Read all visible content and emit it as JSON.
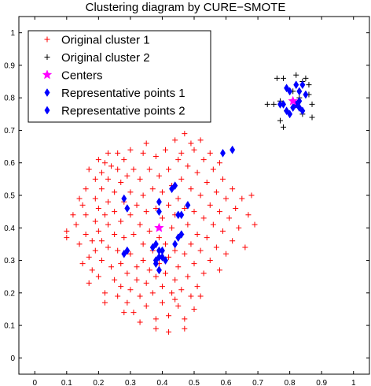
{
  "chart_data": {
    "type": "scatter",
    "title": "Clustering diagram by CURE−SMOTE",
    "xlabel": "",
    "ylabel": "",
    "xlim": [
      -0.05,
      1.05
    ],
    "ylim": [
      -0.05,
      1.05
    ],
    "x_ticks": [
      "0",
      "0.1",
      "0.2",
      "0.3",
      "0.4",
      "0.5",
      "0.6",
      "0.7",
      "0.8",
      "0.9",
      "1"
    ],
    "x_tick_values": [
      0,
      0.1,
      0.2,
      0.3,
      0.4,
      0.5,
      0.6,
      0.7,
      0.8,
      0.9,
      1
    ],
    "y_ticks": [
      "0",
      "0.1",
      "0.2",
      "0.3",
      "0.4",
      "0.5",
      "0.6",
      "0.7",
      "0.8",
      "0.9",
      "1"
    ],
    "y_tick_values": [
      0,
      0.1,
      0.2,
      0.3,
      0.4,
      0.5,
      0.6,
      0.7,
      0.8,
      0.9,
      1
    ],
    "grid": false,
    "legend_position": "top-left",
    "series": [
      {
        "name": "Original cluster 1",
        "marker": "plus",
        "color": "#ff0000",
        "points": [
          [
            0.1,
            0.39
          ],
          [
            0.1,
            0.37
          ],
          [
            0.13,
            0.41
          ],
          [
            0.14,
            0.35
          ],
          [
            0.15,
            0.29
          ],
          [
            0.15,
            0.47
          ],
          [
            0.16,
            0.38
          ],
          [
            0.16,
            0.44
          ],
          [
            0.16,
            0.52
          ],
          [
            0.17,
            0.58
          ],
          [
            0.17,
            0.31
          ],
          [
            0.17,
            0.23
          ],
          [
            0.18,
            0.36
          ],
          [
            0.18,
            0.27
          ],
          [
            0.19,
            0.55
          ],
          [
            0.19,
            0.49
          ],
          [
            0.19,
            0.42
          ],
          [
            0.19,
            0.33
          ],
          [
            0.2,
            0.61
          ],
          [
            0.2,
            0.46
          ],
          [
            0.2,
            0.39
          ],
          [
            0.2,
            0.25
          ],
          [
            0.21,
            0.57
          ],
          [
            0.21,
            0.52
          ],
          [
            0.21,
            0.36
          ],
          [
            0.21,
            0.3
          ],
          [
            0.22,
            0.6
          ],
          [
            0.22,
            0.44
          ],
          [
            0.22,
            0.2
          ],
          [
            0.22,
            0.17
          ],
          [
            0.23,
            0.63
          ],
          [
            0.23,
            0.55
          ],
          [
            0.23,
            0.48
          ],
          [
            0.23,
            0.41
          ],
          [
            0.23,
            0.34
          ],
          [
            0.24,
            0.59
          ],
          [
            0.24,
            0.28
          ],
          [
            0.25,
            0.51
          ],
          [
            0.25,
            0.45
          ],
          [
            0.25,
            0.38
          ],
          [
            0.25,
            0.24
          ],
          [
            0.26,
            0.58
          ],
          [
            0.26,
            0.33
          ],
          [
            0.26,
            0.19
          ],
          [
            0.27,
            0.54
          ],
          [
            0.27,
            0.42
          ],
          [
            0.27,
            0.29
          ],
          [
            0.27,
            0.22
          ],
          [
            0.28,
            0.61
          ],
          [
            0.28,
            0.48
          ],
          [
            0.28,
            0.37
          ],
          [
            0.29,
            0.56
          ],
          [
            0.29,
            0.26
          ],
          [
            0.29,
            0.17
          ],
          [
            0.3,
            0.51
          ],
          [
            0.3,
            0.44
          ],
          [
            0.3,
            0.32
          ],
          [
            0.3,
            0.21
          ],
          [
            0.31,
            0.58
          ],
          [
            0.31,
            0.38
          ],
          [
            0.31,
            0.14
          ],
          [
            0.32,
            0.47
          ],
          [
            0.32,
            0.28
          ],
          [
            0.32,
            0.24
          ],
          [
            0.33,
            0.55
          ],
          [
            0.33,
            0.41
          ],
          [
            0.33,
            0.19
          ],
          [
            0.34,
            0.63
          ],
          [
            0.34,
            0.5
          ],
          [
            0.34,
            0.35
          ],
          [
            0.34,
            0.3
          ],
          [
            0.35,
            0.45
          ],
          [
            0.35,
            0.23
          ],
          [
            0.35,
            0.16
          ],
          [
            0.36,
            0.58
          ],
          [
            0.36,
            0.39
          ],
          [
            0.36,
            0.27
          ],
          [
            0.37,
            0.52
          ],
          [
            0.37,
            0.33
          ],
          [
            0.37,
            0.2
          ],
          [
            0.38,
            0.62
          ],
          [
            0.38,
            0.46
          ],
          [
            0.38,
            0.25
          ],
          [
            0.38,
            0.12
          ],
          [
            0.39,
            0.56
          ],
          [
            0.39,
            0.37
          ],
          [
            0.39,
            0.29
          ],
          [
            0.4,
            0.51
          ],
          [
            0.4,
            0.43
          ],
          [
            0.4,
            0.22
          ],
          [
            0.4,
            0.17
          ],
          [
            0.41,
            0.64
          ],
          [
            0.41,
            0.35
          ],
          [
            0.41,
            0.26
          ],
          [
            0.42,
            0.58
          ],
          [
            0.42,
            0.47
          ],
          [
            0.42,
            0.31
          ],
          [
            0.42,
            0.13
          ],
          [
            0.43,
            0.53
          ],
          [
            0.43,
            0.4
          ],
          [
            0.43,
            0.2
          ],
          [
            0.44,
            0.67
          ],
          [
            0.44,
            0.44
          ],
          [
            0.44,
            0.33
          ],
          [
            0.44,
            0.24
          ],
          [
            0.45,
            0.61
          ],
          [
            0.45,
            0.49
          ],
          [
            0.45,
            0.28
          ],
          [
            0.45,
            0.16
          ],
          [
            0.46,
            0.55
          ],
          [
            0.46,
            0.38
          ],
          [
            0.46,
            0.21
          ],
          [
            0.47,
            0.69
          ],
          [
            0.47,
            0.46
          ],
          [
            0.47,
            0.32
          ],
          [
            0.47,
            0.12
          ],
          [
            0.48,
            0.59
          ],
          [
            0.48,
            0.41
          ],
          [
            0.48,
            0.25
          ],
          [
            0.49,
            0.52
          ],
          [
            0.49,
            0.35
          ],
          [
            0.49,
            0.19
          ],
          [
            0.5,
            0.64
          ],
          [
            0.5,
            0.45
          ],
          [
            0.5,
            0.29
          ],
          [
            0.51,
            0.57
          ],
          [
            0.51,
            0.38
          ],
          [
            0.51,
            0.22
          ],
          [
            0.52,
            0.5
          ],
          [
            0.52,
            0.33
          ],
          [
            0.53,
            0.61
          ],
          [
            0.53,
            0.43
          ],
          [
            0.53,
            0.26
          ],
          [
            0.54,
            0.54
          ],
          [
            0.54,
            0.37
          ],
          [
            0.55,
            0.47
          ],
          [
            0.55,
            0.3
          ],
          [
            0.56,
            0.58
          ],
          [
            0.56,
            0.41
          ],
          [
            0.57,
            0.51
          ],
          [
            0.57,
            0.34
          ],
          [
            0.58,
            0.45
          ],
          [
            0.58,
            0.27
          ],
          [
            0.59,
            0.55
          ],
          [
            0.59,
            0.39
          ],
          [
            0.6,
            0.49
          ],
          [
            0.6,
            0.32
          ],
          [
            0.61,
            0.43
          ],
          [
            0.62,
            0.52
          ],
          [
            0.62,
            0.36
          ],
          [
            0.63,
            0.46
          ],
          [
            0.64,
            0.4
          ],
          [
            0.65,
            0.49
          ],
          [
            0.66,
            0.34
          ],
          [
            0.67,
            0.44
          ],
          [
            0.68,
            0.5
          ],
          [
            0.69,
            0.41
          ],
          [
            0.52,
            0.67
          ],
          [
            0.55,
            0.63
          ],
          [
            0.58,
            0.6
          ],
          [
            0.35,
            0.66
          ],
          [
            0.3,
            0.64
          ],
          [
            0.26,
            0.63
          ],
          [
            0.44,
            0.18
          ],
          [
            0.38,
            0.09
          ],
          [
            0.42,
            0.08
          ],
          [
            0.47,
            0.09
          ],
          [
            0.5,
            0.15
          ],
          [
            0.33,
            0.11
          ],
          [
            0.28,
            0.14
          ],
          [
            0.52,
            0.19
          ],
          [
            0.14,
            0.49
          ],
          [
            0.12,
            0.44
          ],
          [
            0.46,
            0.63
          ],
          [
            0.49,
            0.66
          ]
        ]
      },
      {
        "name": "Original cluster 2",
        "marker": "plus",
        "color": "#000000",
        "points": [
          [
            0.76,
            0.86
          ],
          [
            0.78,
            0.86
          ],
          [
            0.73,
            0.78
          ],
          [
            0.75,
            0.78
          ],
          [
            0.77,
            0.73
          ],
          [
            0.78,
            0.71
          ],
          [
            0.82,
            0.87
          ],
          [
            0.84,
            0.85
          ],
          [
            0.85,
            0.86
          ],
          [
            0.86,
            0.84
          ],
          [
            0.87,
            0.78
          ],
          [
            0.87,
            0.74
          ],
          [
            0.84,
            0.75
          ],
          [
            0.83,
            0.8
          ],
          [
            0.79,
            0.76
          ],
          [
            0.81,
            0.82
          ],
          [
            0.77,
            0.79
          ],
          [
            0.86,
            0.81
          ]
        ]
      },
      {
        "name": "Centers",
        "marker": "star",
        "color": "#ff00ff",
        "points": [
          [
            0.39,
            0.4
          ],
          [
            0.81,
            0.79
          ]
        ]
      },
      {
        "name": "Representative points 1",
        "marker": "diamond",
        "color": "#0000ff",
        "points": [
          [
            0.28,
            0.49
          ],
          [
            0.29,
            0.46
          ],
          [
            0.28,
            0.32
          ],
          [
            0.29,
            0.33
          ],
          [
            0.37,
            0.34
          ],
          [
            0.38,
            0.35
          ],
          [
            0.38,
            0.3
          ],
          [
            0.39,
            0.31
          ],
          [
            0.39,
            0.33
          ],
          [
            0.4,
            0.33
          ],
          [
            0.38,
            0.29
          ],
          [
            0.39,
            0.27
          ],
          [
            0.41,
            0.3
          ],
          [
            0.4,
            0.31
          ],
          [
            0.43,
            0.52
          ],
          [
            0.44,
            0.53
          ],
          [
            0.39,
            0.48
          ],
          [
            0.39,
            0.45
          ],
          [
            0.45,
            0.44
          ],
          [
            0.46,
            0.44
          ],
          [
            0.44,
            0.35
          ],
          [
            0.45,
            0.37
          ],
          [
            0.46,
            0.38
          ],
          [
            0.48,
            0.47
          ],
          [
            0.59,
            0.63
          ],
          [
            0.62,
            0.64
          ]
        ]
      },
      {
        "name": "Representative points 2",
        "marker": "diamond",
        "color": "#0000ff",
        "points": [
          [
            0.77,
            0.78
          ],
          [
            0.78,
            0.78
          ],
          [
            0.79,
            0.76
          ],
          [
            0.79,
            0.83
          ],
          [
            0.8,
            0.82
          ],
          [
            0.8,
            0.75
          ],
          [
            0.81,
            0.77
          ],
          [
            0.82,
            0.78
          ],
          [
            0.82,
            0.84
          ],
          [
            0.83,
            0.79
          ],
          [
            0.83,
            0.77
          ],
          [
            0.84,
            0.76
          ],
          [
            0.85,
            0.81
          ],
          [
            0.83,
            0.82
          ],
          [
            0.84,
            0.84
          ]
        ]
      }
    ]
  }
}
